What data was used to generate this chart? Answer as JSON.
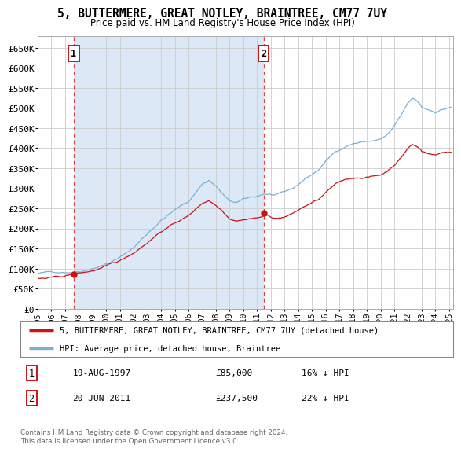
{
  "title": "5, BUTTERMERE, GREAT NOTLEY, BRAINTREE, CM77 7UY",
  "subtitle": "Price paid vs. HM Land Registry's House Price Index (HPI)",
  "ylim": [
    0,
    680000
  ],
  "yticks": [
    0,
    50000,
    100000,
    150000,
    200000,
    250000,
    300000,
    350000,
    400000,
    450000,
    500000,
    550000,
    600000,
    650000
  ],
  "ytick_labels": [
    "£0",
    "£50K",
    "£100K",
    "£150K",
    "£200K",
    "£250K",
    "£300K",
    "£350K",
    "£400K",
    "£450K",
    "£500K",
    "£550K",
    "£600K",
    "£650K"
  ],
  "bg_color": "#ffffff",
  "shade_color": "#dce8f5",
  "grid_color": "#cccccc",
  "sale1_date_num": 1997.63,
  "sale1_price": 85000,
  "sale1_label": "1",
  "sale1_date_str": "19-AUG-1997",
  "sale1_price_str": "£85,000",
  "sale1_pct": "16% ↓ HPI",
  "sale2_date_num": 2011.47,
  "sale2_price": 237500,
  "sale2_label": "2",
  "sale2_date_str": "20-JUN-2011",
  "sale2_price_str": "£237,500",
  "sale2_pct": "22% ↓ HPI",
  "line1_color": "#cc1111",
  "line2_color": "#7ab0d4",
  "marker_color": "#cc1111",
  "marker_size": 6,
  "legend_label1": "5, BUTTERMERE, GREAT NOTLEY, BRAINTREE, CM77 7UY (detached house)",
  "legend_label2": "HPI: Average price, detached house, Braintree",
  "footer": "Contains HM Land Registry data © Crown copyright and database right 2024.\nThis data is licensed under the Open Government Licence v3.0.",
  "xmin": 1995.0,
  "xmax": 2025.3
}
